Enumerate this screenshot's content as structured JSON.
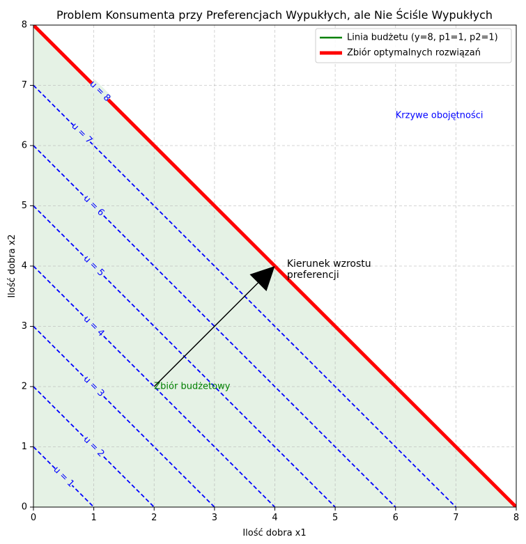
{
  "chart_data": {
    "type": "line",
    "title": "Problem Konsumenta przy Preferencjach Wypukłych, ale Nie Ściśle Wypukłych",
    "xlabel": "Ilość dobra x1",
    "ylabel": "Ilość dobra x2",
    "xlim": [
      0,
      8
    ],
    "ylim": [
      0,
      8
    ],
    "xticks": [
      "0",
      "1",
      "2",
      "3",
      "4",
      "5",
      "6",
      "7",
      "8"
    ],
    "yticks": [
      "0",
      "1",
      "2",
      "3",
      "4",
      "5",
      "6",
      "7",
      "8"
    ],
    "grid": true,
    "legend_position": "top-right",
    "legend": [
      {
        "label": "Linia budżetu (y=8, p1=1, p2=1)",
        "color": "#008000"
      },
      {
        "label": "Zbiór optymalnych rozwiązań",
        "color": "#ff0000"
      }
    ],
    "budget_line": {
      "x": [
        0,
        8
      ],
      "y": [
        8,
        0
      ],
      "color": "#008000"
    },
    "optimal_set": {
      "x": [
        0,
        8
      ],
      "y": [
        8,
        0
      ],
      "color": "#ff0000"
    },
    "budget_set_fill": {
      "vertices": [
        [
          0,
          0
        ],
        [
          8,
          0
        ],
        [
          0,
          8
        ]
      ],
      "color": "#e5f2e5"
    },
    "indifference_curves": {
      "color": "#0000ff",
      "levels": [
        {
          "u": 1,
          "label": "u = 1",
          "label_at": [
            0.5,
            0.5
          ]
        },
        {
          "u": 2,
          "label": "u = 2",
          "label_at": [
            1.0,
            1.0
          ]
        },
        {
          "u": 3,
          "label": "u = 3",
          "label_at": [
            1.0,
            2.0
          ]
        },
        {
          "u": 4,
          "label": "u = 4",
          "label_at": [
            1.0,
            3.0
          ]
        },
        {
          "u": 5,
          "label": "u = 5",
          "label_at": [
            1.0,
            4.0
          ]
        },
        {
          "u": 6,
          "label": "u = 6",
          "label_at": [
            1.0,
            5.0
          ]
        },
        {
          "u": 7,
          "label": "u = 7",
          "label_at": [
            0.8,
            6.2
          ]
        },
        {
          "u": 8,
          "label": "u = 8",
          "label_at": [
            1.1,
            6.9
          ]
        }
      ]
    },
    "annotations": [
      {
        "text": "Krzywe obojętności",
        "at": [
          6.0,
          6.5
        ],
        "color": "#0000ff"
      },
      {
        "text": "Zbiór budżetowy",
        "at": [
          2.0,
          2.0
        ],
        "color": "#008000"
      }
    ],
    "arrow": {
      "from": [
        2.0,
        2.0
      ],
      "to": [
        4.0,
        4.0
      ],
      "label_lines": [
        "Kierunek wzrostu",
        "preferencji"
      ],
      "label_at": [
        4.2,
        3.85
      ]
    }
  }
}
